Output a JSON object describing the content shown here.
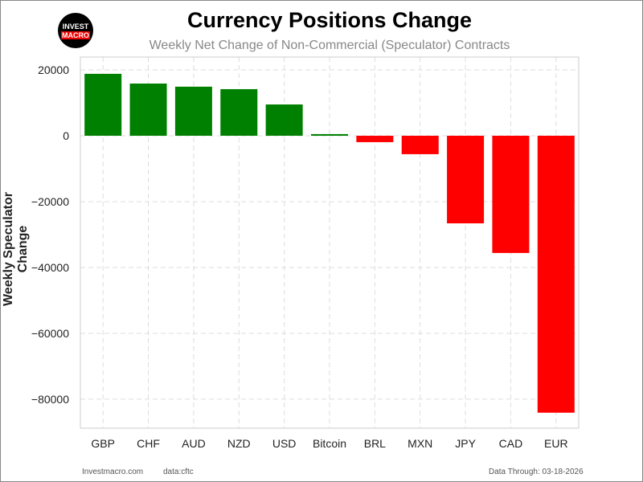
{
  "logo_text": "INVEST MACRO",
  "chart_data": {
    "type": "bar",
    "title": "Currency Positions Change",
    "subtitle": "Weekly Net Change of Non-Commercial (Speculator) Contracts",
    "xlabel": "",
    "ylabel": "Weekly Speculator Change",
    "categories": [
      "GBP",
      "CHF",
      "AUD",
      "NZD",
      "USD",
      "Bitcoin",
      "BRL",
      "MXN",
      "JPY",
      "CAD",
      "EUR"
    ],
    "values": [
      18800,
      15850,
      14900,
      14150,
      9500,
      500,
      -1950,
      -5600,
      -26600,
      -35600,
      -84100
    ],
    "ylim": [
      -88800,
      23900
    ],
    "yticks": [
      20000,
      0,
      -20000,
      -40000,
      -60000,
      -80000
    ],
    "ytick_labels": [
      "20000",
      "0",
      "−20000",
      "−40000",
      "−60000",
      "−80000"
    ],
    "grid": true,
    "colors": {
      "positive": "#008000",
      "negative": "#ff0000"
    }
  },
  "footer": {
    "site": "Investmacro.com",
    "source": "data:cftc",
    "data_through": "Data Through: 03-18-2026"
  }
}
